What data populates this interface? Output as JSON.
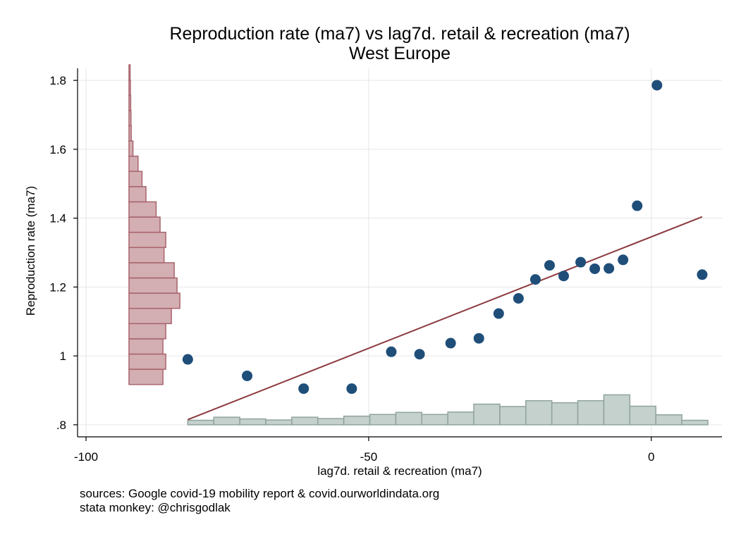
{
  "chart_data": {
    "type": "scatter",
    "title": "Reproduction rate (ma7) vs lag7d. retail & recreation (ma7)",
    "subtitle": "West Europe",
    "xlabel": "lag7d. retail & recreation (ma7)",
    "ylabel": "Reproduction rate (ma7)",
    "xlim": [
      -101.5,
      12.5
    ],
    "ylim": [
      0.765,
      1.835
    ],
    "xticks": [
      -100,
      -50,
      0
    ],
    "xtick_labels": [
      "-100",
      "-50",
      "0"
    ],
    "yticks": [
      0.8,
      1.0,
      1.2,
      1.4,
      1.6,
      1.8
    ],
    "ytick_labels": [
      ".8",
      "1",
      "1.2",
      "1.4",
      "1.6",
      "1.8"
    ],
    "grid": true,
    "notes": [
      "sources: Google covid-19 mobility report & covid.ourworldindata.org",
      "stata monkey: @chrisgodlak"
    ],
    "colors": {
      "points": "#1f4e79",
      "fit_line": "#8b3a3e",
      "y_hist_fill": "#d3aeb3",
      "y_hist_stroke": "#a8646c",
      "x_hist_fill": "#c5d1cd",
      "x_hist_stroke": "#8fa39c",
      "grid": "#e6e6e6"
    },
    "scatter": {
      "x": [
        -82,
        -71.5,
        -61.5,
        -53,
        -46,
        -41,
        -35.5,
        -30.5,
        -27,
        -23.5,
        -20.5,
        -18,
        -15.5,
        -12.5,
        -10,
        -7.5,
        -5,
        -2.5,
        1,
        9
      ],
      "y": [
        0.99,
        0.942,
        0.905,
        0.905,
        1.012,
        1.005,
        1.037,
        1.051,
        1.123,
        1.167,
        1.222,
        1.263,
        1.232,
        1.272,
        1.253,
        1.254,
        1.279,
        1.436,
        1.786,
        1.236
      ]
    },
    "fit_line": {
      "x": [
        -82,
        9
      ],
      "y": [
        0.815,
        1.404
      ]
    },
    "x_histogram": {
      "x_start": -82,
      "bin_width": 4.6,
      "baseline": 0.8,
      "heights": [
        0.013,
        0.022,
        0.017,
        0.014,
        0.022,
        0.018,
        0.025,
        0.03,
        0.036,
        0.03,
        0.037,
        0.06,
        0.053,
        0.07,
        0.064,
        0.07,
        0.087,
        0.054,
        0.029,
        0.013
      ]
    },
    "y_histogram": {
      "x_base": -92.4,
      "y_start": 0.917,
      "bin_width": 0.0442,
      "lengths": [
        6,
        6.5,
        6,
        6.5,
        7.5,
        9,
        8.5,
        8,
        6.2,
        6.5,
        5.5,
        4.8,
        3,
        2.3,
        1.6,
        0.7,
        0.4,
        0.35,
        0.3,
        0.25,
        0.2
      ]
    }
  }
}
